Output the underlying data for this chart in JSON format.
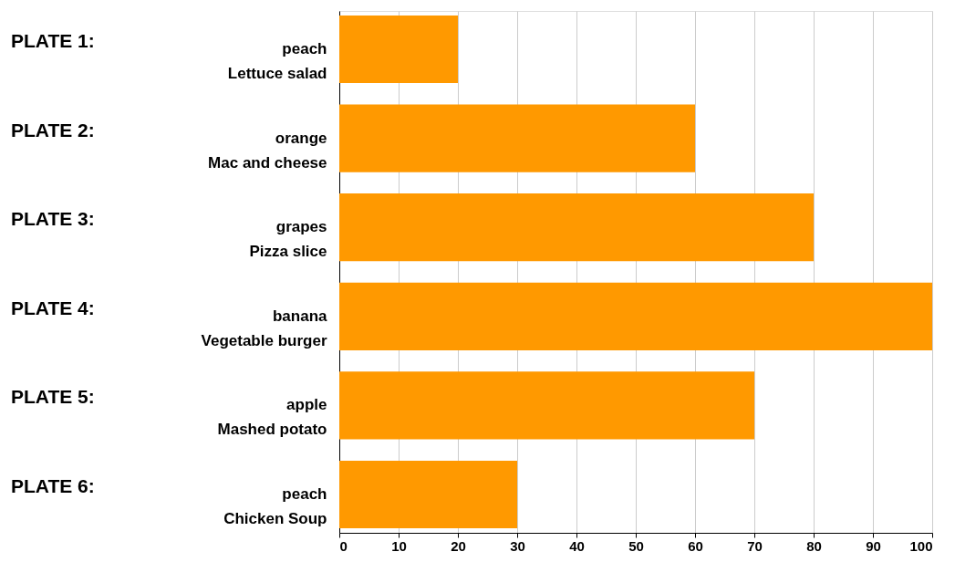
{
  "chart_data": {
    "type": "bar",
    "orientation": "horizontal",
    "categories": [
      "peach\nLettuce salad",
      "orange\nMac and cheese",
      "grapes\nPizza slice",
      "banana\nVegetable burger",
      "apple\nMashed potato",
      "peach\nChicken Soup"
    ],
    "values": [
      20,
      60,
      80,
      100,
      70,
      30
    ],
    "color": "#ff9900",
    "xlim": [
      0,
      100
    ],
    "xticks": [
      0,
      10,
      20,
      30,
      40,
      50,
      60,
      70,
      80,
      90,
      100
    ],
    "grid": "x",
    "annotations": [
      "PLATE 1:",
      "PLATE 2:",
      "PLATE 3:",
      "PLATE 4:",
      "PLATE 5:",
      "PLATE 6:"
    ]
  }
}
